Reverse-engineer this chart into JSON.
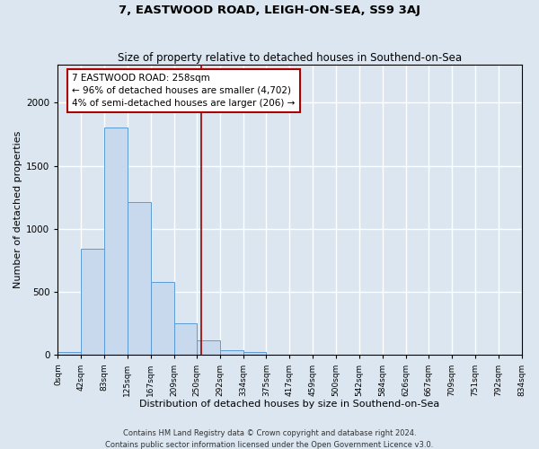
{
  "title": "7, EASTWOOD ROAD, LEIGH-ON-SEA, SS9 3AJ",
  "subtitle": "Size of property relative to detached houses in Southend-on-Sea",
  "xlabel": "Distribution of detached houses by size in Southend-on-Sea",
  "ylabel": "Number of detached properties",
  "bar_edges": [
    0,
    42,
    83,
    125,
    167,
    209,
    250,
    292,
    334,
    375,
    417,
    459,
    500,
    542,
    584,
    626,
    667,
    709,
    751,
    792,
    834
  ],
  "bar_heights": [
    25,
    840,
    1800,
    1215,
    580,
    255,
    115,
    40,
    25,
    0,
    0,
    0,
    0,
    0,
    0,
    0,
    0,
    0,
    0,
    0
  ],
  "bar_color": "#c8d8ed",
  "bar_edge_color": "#5b9bd5",
  "vline_x": 258,
  "vline_color": "#990000",
  "ylim": [
    0,
    2300
  ],
  "annotation_title": "7 EASTWOOD ROAD: 258sqm",
  "annotation_line1": "← 96% of detached houses are smaller (4,702)",
  "annotation_line2": "4% of semi-detached houses are larger (206) →",
  "annotation_box_color": "#ffffff",
  "annotation_box_edge_color": "#aa0000",
  "footer1": "Contains HM Land Registry data © Crown copyright and database right 2024.",
  "footer2": "Contains public sector information licensed under the Open Government Licence v3.0.",
  "background_color": "#dce6f0",
  "plot_background_color": "#dce6f0",
  "grid_color": "#ffffff",
  "tick_labels": [
    "0sqm",
    "42sqm",
    "83sqm",
    "125sqm",
    "167sqm",
    "209sqm",
    "250sqm",
    "292sqm",
    "334sqm",
    "375sqm",
    "417sqm",
    "459sqm",
    "500sqm",
    "542sqm",
    "584sqm",
    "626sqm",
    "667sqm",
    "709sqm",
    "751sqm",
    "792sqm",
    "834sqm"
  ]
}
